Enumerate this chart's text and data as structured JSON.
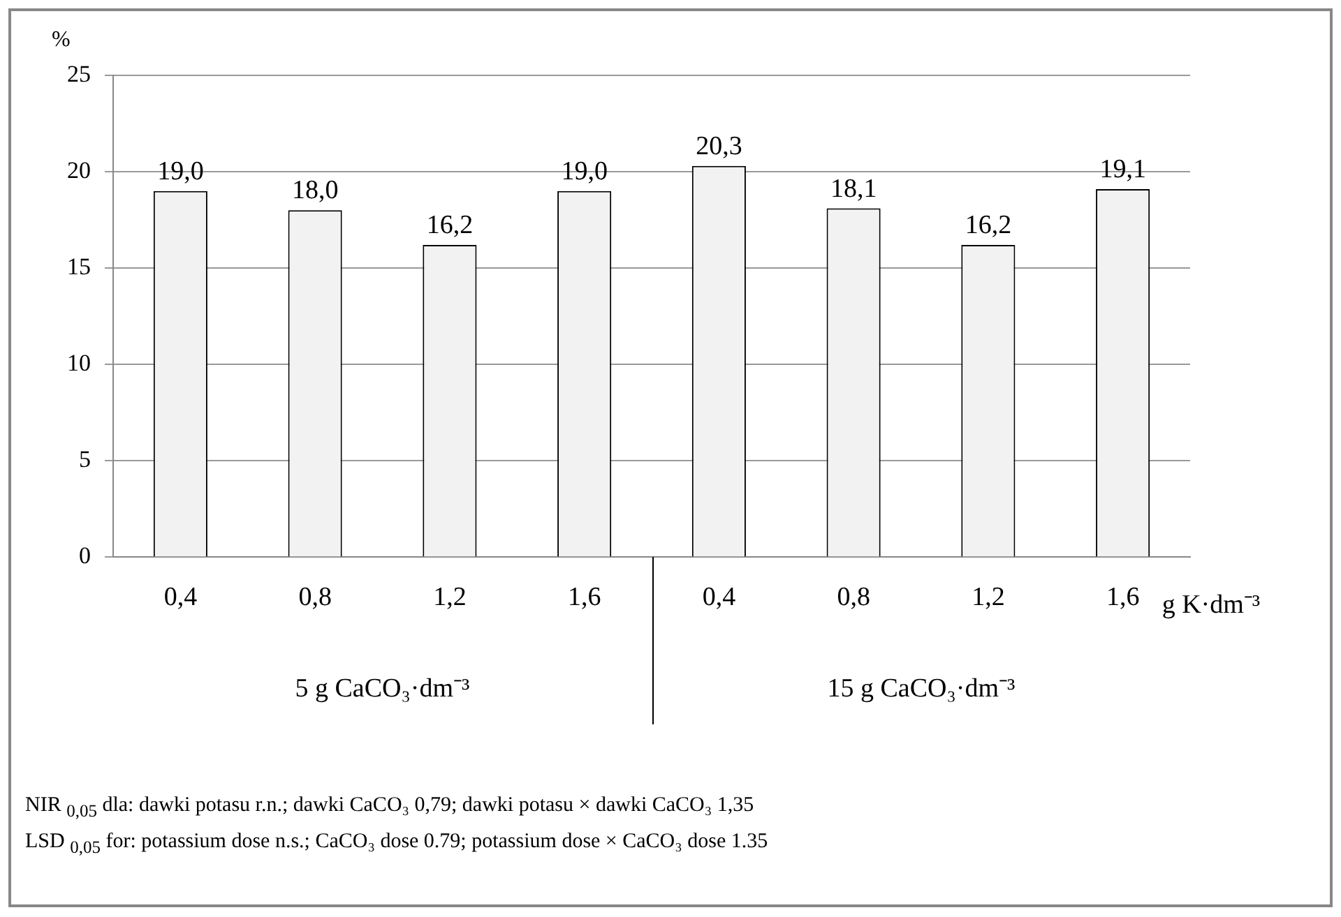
{
  "chart_data": {
    "type": "bar",
    "ylabel": "%",
    "xlabel": "g K·dm⁻³",
    "categories": [
      "0,4",
      "0,8",
      "1,2",
      "1,6",
      "0,4",
      "0,8",
      "1,2",
      "1,6"
    ],
    "values": [
      19.0,
      18.0,
      16.2,
      19.0,
      20.3,
      18.1,
      16.2,
      19.1
    ],
    "value_labels": [
      "19,0",
      "18,0",
      "16,2",
      "19,0",
      "20,3",
      "18,1",
      "16,2",
      "19,1"
    ],
    "color": "#f2f2f2",
    "ylim": [
      0,
      25
    ],
    "yticks": [
      0,
      5,
      10,
      15,
      20,
      25
    ],
    "grid": "y",
    "legend": false,
    "annotations": [
      "5 g CaCO₃·dm⁻³",
      "15 g CaCO₃·dm⁻³",
      "NIR $_{0,05}$ dla: dawki potasu  r.n.;  dawki CaCO₃ 0,79; dawki potasu × dawki CaCO₃ 1,35",
      "LSD $_{0,05}$ for: potassium dose n.s.; CaCO₃ dose 0.79; potassium dose  × CaCO₃ dose 1.35"
    ]
  }
}
